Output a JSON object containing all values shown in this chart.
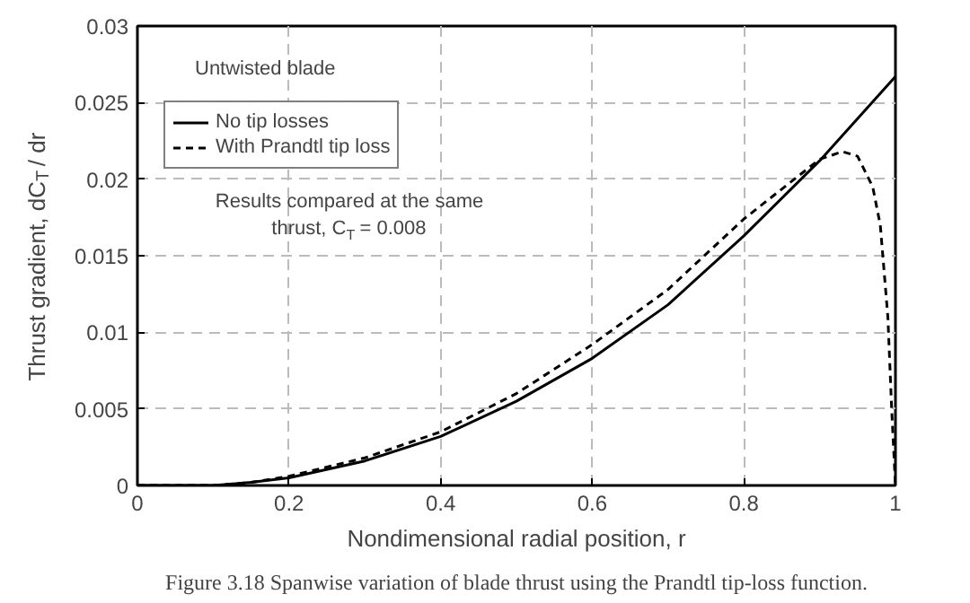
{
  "chart_data": {
    "type": "line",
    "xlabel": "Nondimensional radial position, r",
    "ylabel": "Thrust gradient, dC$_{T}$ / dr",
    "annotations": [
      "Untwisted blade",
      "Results compared at the same thrust, C$_{T}$ = 0.008",
      "Figure 3.18 Spanwise variation of blade thrust using the Prandtl tip-loss function."
    ],
    "xlim": [
      0,
      1
    ],
    "ylim": [
      0,
      0.03
    ],
    "xticks": [
      0,
      0.2,
      0.4,
      0.6,
      0.8,
      1
    ],
    "yticks": [
      0,
      0.005,
      0.01,
      0.015,
      0.02,
      0.025,
      0.03
    ],
    "grid": true,
    "legend": "top left",
    "marker": "none",
    "series": [
      {
        "name": "No tip losses",
        "color": "#000000",
        "line_style": "solid",
        "x": [
          0,
          0.1,
          0.15,
          0.2,
          0.3,
          0.4,
          0.5,
          0.6,
          0.7,
          0.8,
          0.9,
          1.0
        ],
        "values": [
          0,
          0,
          0.0002,
          0.0005,
          0.0016,
          0.0032,
          0.0055,
          0.0083,
          0.0118,
          0.0163,
          0.0212,
          0.0267
        ]
      },
      {
        "name": "With Prandtl tip loss",
        "color": "#000000",
        "line_style": "dashed",
        "x": [
          0,
          0.1,
          0.15,
          0.2,
          0.3,
          0.4,
          0.5,
          0.6,
          0.7,
          0.8,
          0.9,
          0.93,
          0.95,
          0.97,
          0.98,
          0.99,
          0.995,
          1.0
        ],
        "values": [
          0,
          0,
          0.0002,
          0.0006,
          0.0018,
          0.0035,
          0.006,
          0.0092,
          0.0128,
          0.0174,
          0.0213,
          0.0218,
          0.0215,
          0.0195,
          0.017,
          0.011,
          0.005,
          0
        ]
      }
    ]
  }
}
